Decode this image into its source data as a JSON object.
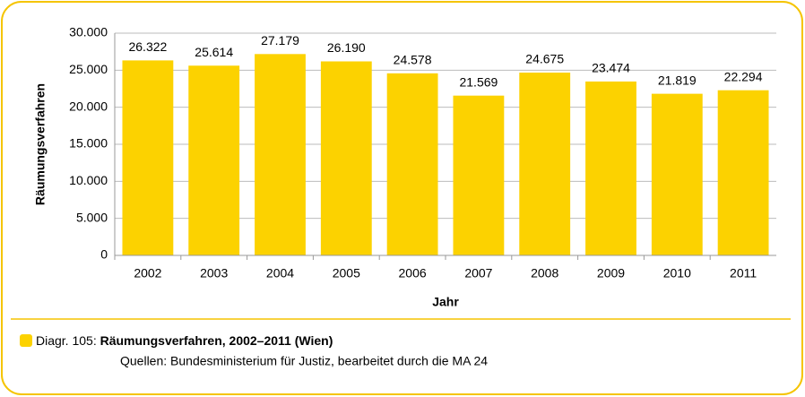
{
  "chart_data": {
    "type": "bar",
    "y_label": "Räumungsverfahren",
    "x_label": "Jahr",
    "categories": [
      "2002",
      "2003",
      "2004",
      "2005",
      "2006",
      "2007",
      "2008",
      "2009",
      "2010",
      "2011"
    ],
    "values": [
      26322,
      25614,
      27179,
      26190,
      24578,
      21569,
      24675,
      23474,
      21819,
      22294
    ],
    "value_labels": [
      "26.322",
      "25.614",
      "27.179",
      "26.190",
      "24.578",
      "21.569",
      "24.675",
      "23.474",
      "21.819",
      "22.294"
    ],
    "color": "#fcd200",
    "ylim": [
      0,
      30000
    ],
    "yticks": [
      0,
      {
        "value": 5000,
        "label": "5.000"
      },
      {
        "value": 10000,
        "label": "10.000"
      },
      {
        "value": 15000,
        "label": "15.000"
      },
      {
        "value": 20000,
        "label": "20.000"
      },
      {
        "value": 25000,
        "label": "25.000"
      },
      {
        "value": 30000,
        "label": "30.000"
      }
    ],
    "grid": true,
    "caption_label": "Diagr. 105:",
    "caption_title": "Räumungsverfahren, 2002–2011 (Wien)",
    "source": "Quellen: Bundesministerium für Justiz, bearbeitet durch die MA 24"
  }
}
